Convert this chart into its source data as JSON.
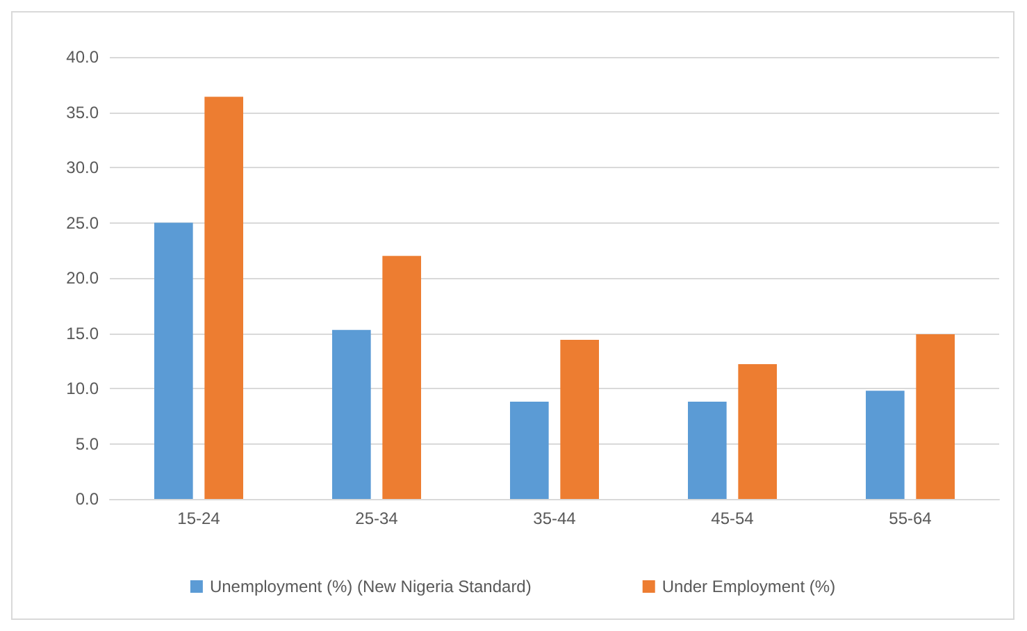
{
  "chart_data": {
    "type": "bar",
    "categories": [
      "15-24",
      "25-34",
      "35-44",
      "45-54",
      "55-64"
    ],
    "series": [
      {
        "name": "Unemployment (%) (New Nigeria Standard)",
        "color": "#5b9bd5",
        "values": [
          25.0,
          15.3,
          8.8,
          8.8,
          9.8
        ]
      },
      {
        "name": "Under Employment (%)",
        "color": "#ed7d31",
        "values": [
          36.4,
          22.0,
          14.4,
          12.2,
          14.9
        ]
      }
    ],
    "ylim": [
      0,
      40
    ],
    "yticks": [
      {
        "value": 0,
        "label": "0.0"
      },
      {
        "value": 5,
        "label": "5.0"
      },
      {
        "value": 10,
        "label": "10.0"
      },
      {
        "value": 15,
        "label": "15.0"
      },
      {
        "value": 20,
        "label": "20.0"
      },
      {
        "value": 25,
        "label": "25.0"
      },
      {
        "value": 30,
        "label": "30.0"
      },
      {
        "value": 35,
        "label": "35.0"
      },
      {
        "value": 40,
        "label": "40.0"
      }
    ],
    "grid": "y",
    "legend": "bottom"
  }
}
